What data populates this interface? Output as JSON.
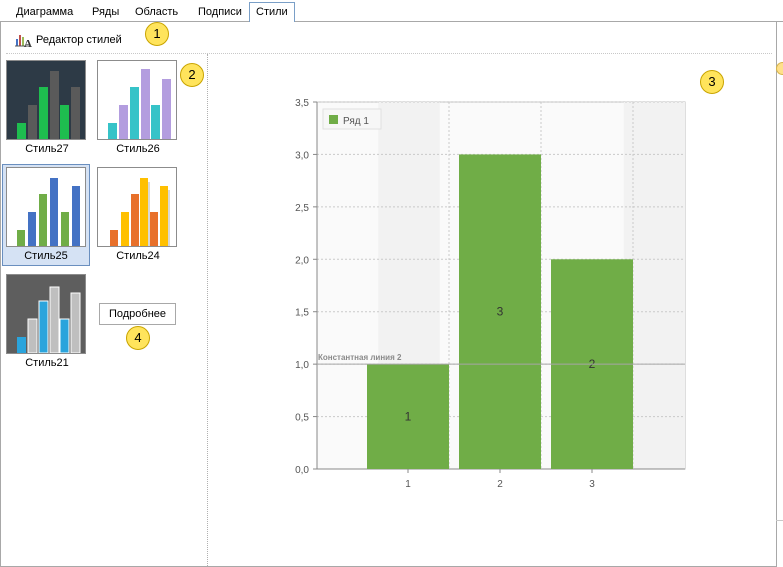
{
  "tabs": [
    {
      "label": "Диаграмма",
      "active": false
    },
    {
      "label": "Ряды",
      "active": false
    },
    {
      "label": "Область",
      "active": false
    },
    {
      "label": "Подписи",
      "active": false
    },
    {
      "label": "Стили",
      "active": true
    }
  ],
  "toolbar": {
    "style_editor_label": "Редактор стилей",
    "style_editor_icon": "chart-style-icon"
  },
  "styles": [
    {
      "caption": "Стиль27",
      "selected": false
    },
    {
      "caption": "Стиль26",
      "selected": false
    },
    {
      "caption": "Стиль25",
      "selected": true
    },
    {
      "caption": "Стиль24",
      "selected": false
    },
    {
      "caption": "Стиль21",
      "selected": false
    }
  ],
  "more_button": {
    "label": "Подробнее"
  },
  "badges": [
    "1",
    "2",
    "3",
    "4"
  ],
  "colors": {
    "bar": "#70ad47",
    "accent_border": "#6a8fbf",
    "selected_bg": "#d5e2f4",
    "badge": "#ffe45c"
  },
  "chart_data": {
    "type": "bar",
    "categories": [
      "1",
      "2",
      "3"
    ],
    "series": [
      {
        "name": "Ряд 1",
        "values": [
          1,
          3,
          2
        ]
      }
    ],
    "data_labels": [
      "1",
      "3",
      "2"
    ],
    "ylim": [
      0,
      3.5
    ],
    "yticks": [
      "0,0",
      "0,5",
      "1,0",
      "1,5",
      "2,0",
      "2,5",
      "3,0",
      "3,5"
    ],
    "constant_line": {
      "label": "Константная линия 2",
      "value": 1
    },
    "grid": true,
    "legend_position": "top-left",
    "title": "",
    "xlabel": "",
    "ylabel": ""
  }
}
